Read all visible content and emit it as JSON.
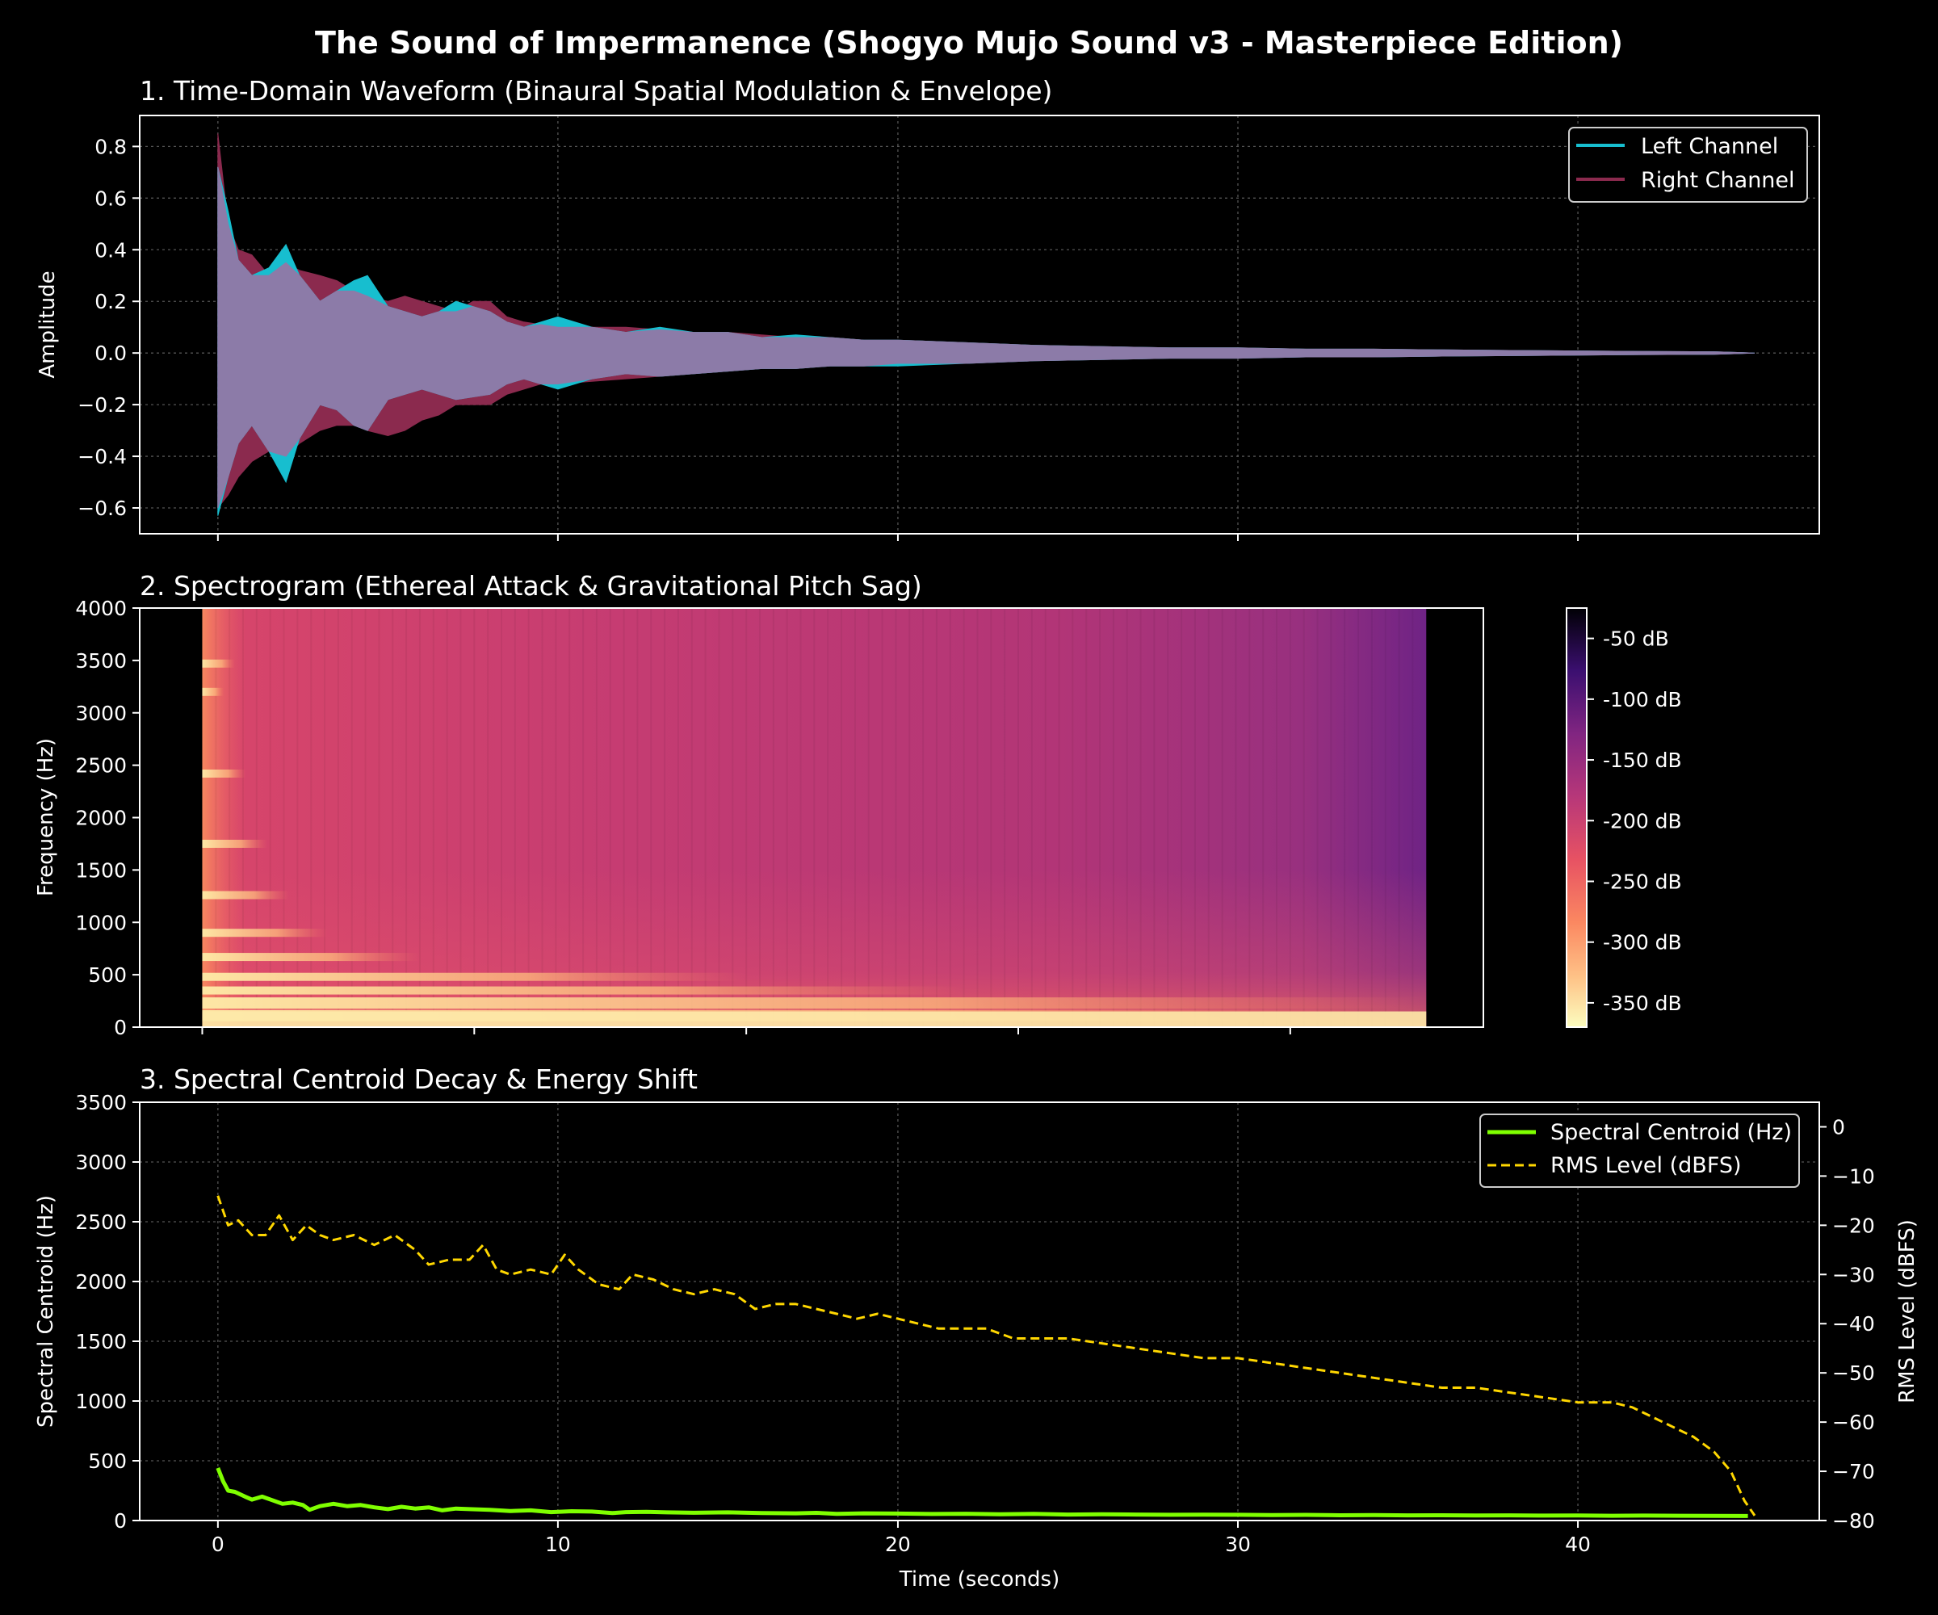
{
  "title": "The Sound of Impermanence (Shogyo Mujo Sound v3 - Masterpiece Edition)",
  "colors": {
    "background": "#000000",
    "title_text": "#e6e6e6",
    "panel_title": "#87ceeb",
    "left_channel": "#17becf",
    "right_channel": "#8b2a4e",
    "overlap": "#8c7ba8",
    "centroid": "#7fff00",
    "rms": "#ffd700",
    "axes": "#ffffff",
    "grid": "#555555"
  },
  "chart_data": [
    {
      "type": "area",
      "title": "1. Time-Domain Waveform (Binaural Spatial Modulation & Envelope)",
      "xlabel": "",
      "ylabel": "Amplitude",
      "xlim": [
        -2.3,
        47.1
      ],
      "ylim": [
        -0.7,
        0.92
      ],
      "xticks": [
        0,
        10,
        20,
        30,
        40
      ],
      "yticks": [
        -0.6,
        -0.4,
        -0.2,
        0.0,
        0.2,
        0.4,
        0.6,
        0.8
      ],
      "ytick_labels": [
        "−0.6",
        "−0.4",
        "−0.2",
        "0.0",
        "0.2",
        "0.4",
        "0.6",
        "0.8"
      ],
      "grid": true,
      "legend": "upper right",
      "series": [
        {
          "name": "Left Channel",
          "x": [
            0,
            0.3,
            0.6,
            1,
            1.5,
            2,
            2.4,
            3,
            3.5,
            4,
            4.4,
            5,
            5.5,
            6,
            6.5,
            7,
            7.5,
            8,
            8.5,
            9,
            9.5,
            10,
            11,
            12,
            13,
            14,
            15,
            16,
            17,
            18,
            19,
            20,
            22,
            24,
            26,
            28,
            30,
            32,
            34,
            36,
            38,
            40,
            42,
            44,
            45.2
          ],
          "upper": [
            0.72,
            0.55,
            0.36,
            0.3,
            0.33,
            0.42,
            0.3,
            0.2,
            0.24,
            0.28,
            0.3,
            0.18,
            0.16,
            0.14,
            0.16,
            0.2,
            0.18,
            0.16,
            0.12,
            0.1,
            0.12,
            0.14,
            0.1,
            0.08,
            0.1,
            0.08,
            0.08,
            0.06,
            0.07,
            0.06,
            0.05,
            0.05,
            0.04,
            0.03,
            0.025,
            0.02,
            0.02,
            0.015,
            0.015,
            0.012,
            0.01,
            0.008,
            0.006,
            0.005,
            0.0
          ],
          "lower": [
            -0.63,
            -0.48,
            -0.35,
            -0.28,
            -0.38,
            -0.5,
            -0.33,
            -0.2,
            -0.22,
            -0.28,
            -0.3,
            -0.18,
            -0.16,
            -0.14,
            -0.16,
            -0.18,
            -0.17,
            -0.16,
            -0.12,
            -0.1,
            -0.12,
            -0.14,
            -0.1,
            -0.08,
            -0.09,
            -0.08,
            -0.07,
            -0.06,
            -0.06,
            -0.05,
            -0.05,
            -0.05,
            -0.04,
            -0.03,
            -0.025,
            -0.02,
            -0.02,
            -0.015,
            -0.015,
            -0.012,
            -0.01,
            -0.008,
            -0.006,
            -0.005,
            0.0
          ]
        },
        {
          "name": "Right Channel",
          "x": [
            0,
            0.3,
            0.6,
            1,
            1.5,
            2,
            2.4,
            3,
            3.5,
            4,
            4.4,
            5,
            5.5,
            6,
            6.5,
            7,
            7.5,
            8,
            8.5,
            9,
            9.5,
            10,
            11,
            12,
            13,
            14,
            15,
            16,
            17,
            18,
            19,
            20,
            22,
            24,
            26,
            28,
            30,
            32,
            34,
            36,
            38,
            40,
            42,
            44,
            45.2
          ],
          "upper": [
            0.85,
            0.5,
            0.4,
            0.38,
            0.3,
            0.35,
            0.32,
            0.3,
            0.28,
            0.24,
            0.22,
            0.2,
            0.22,
            0.2,
            0.18,
            0.16,
            0.2,
            0.2,
            0.14,
            0.12,
            0.11,
            0.1,
            0.1,
            0.1,
            0.09,
            0.08,
            0.08,
            0.07,
            0.06,
            0.06,
            0.05,
            0.05,
            0.04,
            0.03,
            0.025,
            0.02,
            0.02,
            0.015,
            0.015,
            0.012,
            0.01,
            0.008,
            0.006,
            0.005,
            0.0
          ],
          "lower": [
            -0.6,
            -0.55,
            -0.48,
            -0.42,
            -0.38,
            -0.4,
            -0.35,
            -0.3,
            -0.28,
            -0.28,
            -0.3,
            -0.32,
            -0.3,
            -0.26,
            -0.24,
            -0.2,
            -0.2,
            -0.2,
            -0.16,
            -0.14,
            -0.12,
            -0.12,
            -0.11,
            -0.1,
            -0.09,
            -0.08,
            -0.07,
            -0.06,
            -0.06,
            -0.05,
            -0.05,
            -0.04,
            -0.04,
            -0.03,
            -0.025,
            -0.02,
            -0.02,
            -0.015,
            -0.015,
            -0.012,
            -0.01,
            -0.008,
            -0.006,
            -0.005,
            0.0
          ]
        }
      ]
    },
    {
      "type": "heatmap",
      "title": "2. Spectrogram (Ethereal Attack & Gravitational Pitch Sag)",
      "xlabel": "",
      "ylabel": "Frequency (Hz)",
      "xlim": [
        -2.3,
        47.1
      ],
      "ylim": [
        0,
        4000
      ],
      "data_xlim": [
        0,
        45
      ],
      "xticks": [
        0,
        10,
        20,
        30,
        40
      ],
      "yticks": [
        0,
        500,
        1000,
        1500,
        2000,
        2500,
        3000,
        3500,
        4000
      ],
      "colormap": "magma",
      "colorbar": {
        "range_db": [
          -370,
          -25
        ],
        "ticks": [
          -50,
          -100,
          -150,
          -200,
          -250,
          -300,
          -350
        ],
        "tick_labels": [
          "-50 dB",
          "-100 dB",
          "-150 dB",
          "-200 dB",
          "-250 dB",
          "-300 dB",
          "-350 dB"
        ]
      },
      "bright_bands_hz": [
        {
          "freq": 3470,
          "end_time": 1.2,
          "level_db": -110
        },
        {
          "freq": 3200,
          "end_time": 0.8,
          "level_db": -120
        },
        {
          "freq": 2420,
          "end_time": 1.6,
          "level_db": -110
        },
        {
          "freq": 1750,
          "end_time": 2.4,
          "level_db": -100
        },
        {
          "freq": 1260,
          "end_time": 3.2,
          "level_db": -95
        },
        {
          "freq": 900,
          "end_time": 4.6,
          "level_db": -85
        },
        {
          "freq": 670,
          "end_time": 8.0,
          "level_db": -80
        },
        {
          "freq": 480,
          "end_time": 20.0,
          "level_db": -70
        },
        {
          "freq": 350,
          "end_time": 28.0,
          "level_db": -60
        },
        {
          "freq": 230,
          "end_time": 45.0,
          "level_db": -55
        },
        {
          "freq": 110,
          "end_time": 45.0,
          "level_db": -40
        }
      ]
    },
    {
      "type": "line",
      "title": "3. Spectral Centroid Decay & Energy Shift",
      "xlabel": "Time (seconds)",
      "ylabel": "Spectral Centroid (Hz)",
      "ylabel_right": "RMS Level (dBFS)",
      "xlim": [
        -2.3,
        47.1
      ],
      "ylim": [
        0,
        3500
      ],
      "ylim_right": [
        -80,
        5
      ],
      "xticks": [
        0,
        10,
        20,
        30,
        40
      ],
      "yticks": [
        0,
        500,
        1000,
        1500,
        2000,
        2500,
        3000,
        3500
      ],
      "yticks_right": [
        0,
        -10,
        -20,
        -30,
        -40,
        -50,
        -60,
        -70,
        -80
      ],
      "ytick_labels_right": [
        "0",
        "−10",
        "−20",
        "−30",
        "−40",
        "−50",
        "−60",
        "−70",
        "−80"
      ],
      "grid": true,
      "legend": "upper right",
      "series": [
        {
          "name": "Spectral Centroid (Hz)",
          "axis": "left",
          "style": "solid",
          "x": [
            0,
            0.15,
            0.3,
            0.5,
            0.8,
            1.0,
            1.3,
            1.6,
            1.9,
            2.2,
            2.5,
            2.7,
            3.0,
            3.4,
            3.8,
            4.2,
            4.6,
            5.0,
            5.4,
            5.8,
            6.2,
            6.6,
            7.0,
            7.4,
            8.0,
            8.6,
            9.2,
            9.8,
            10.4,
            11.0,
            11.6,
            12.0,
            12.6,
            13.2,
            14.0,
            15.0,
            16.0,
            17.0,
            17.6,
            18.2,
            19.0,
            20.0,
            21.0,
            22.0,
            23.0,
            24.0,
            25.0,
            26.0,
            27.0,
            28.0,
            29.0,
            30.0,
            31.0,
            32.0,
            33.0,
            34.0,
            35.0,
            36.0,
            37.0,
            38.0,
            39.0,
            40.0,
            41.0,
            42.0,
            43.0,
            44.0,
            45.0
          ],
          "values": [
            440,
            330,
            250,
            240,
            200,
            175,
            200,
            170,
            140,
            150,
            130,
            90,
            120,
            140,
            120,
            130,
            110,
            95,
            115,
            100,
            110,
            85,
            100,
            95,
            90,
            80,
            85,
            70,
            78,
            75,
            62,
            70,
            72,
            68,
            65,
            68,
            62,
            60,
            64,
            56,
            60,
            58,
            55,
            57,
            52,
            56,
            50,
            52,
            50,
            48,
            49,
            48,
            45,
            47,
            44,
            45,
            43,
            44,
            42,
            43,
            41,
            42,
            40,
            41,
            40,
            39,
            38
          ]
        },
        {
          "name": "RMS Level (dBFS)",
          "axis": "right",
          "style": "dashed",
          "x": [
            0,
            0.3,
            0.6,
            1.0,
            1.4,
            1.8,
            2.2,
            2.6,
            3.0,
            3.4,
            4.0,
            4.6,
            5.2,
            5.8,
            6.2,
            6.8,
            7.4,
            7.8,
            8.2,
            8.6,
            9.2,
            9.8,
            10.2,
            10.6,
            11.2,
            11.8,
            12.2,
            12.8,
            13.4,
            14.0,
            14.6,
            15.2,
            15.8,
            16.4,
            17.0,
            17.6,
            18.2,
            18.8,
            19.4,
            20.0,
            20.6,
            21.2,
            22.0,
            22.6,
            23.4,
            24.2,
            25.0,
            26.0,
            27.0,
            28.0,
            29.0,
            30.0,
            31.0,
            32.0,
            33.0,
            34.0,
            35.0,
            36.0,
            37.0,
            38.0,
            39.0,
            40.0,
            41.0,
            41.6,
            42.2,
            42.8,
            43.4,
            44.0,
            44.5,
            44.9,
            45.2
          ],
          "values": [
            -14,
            -20,
            -19,
            -22,
            -22,
            -18,
            -23,
            -20,
            -22,
            -23,
            -22,
            -24,
            -22,
            -25,
            -28,
            -27,
            -27,
            -24,
            -29,
            -30,
            -29,
            -30,
            -26,
            -29,
            -32,
            -33,
            -30,
            -31,
            -33,
            -34,
            -33,
            -34,
            -37,
            -36,
            -36,
            -37,
            -38,
            -39,
            -38,
            -39,
            -40,
            -41,
            -41,
            -41,
            -43,
            -43,
            -43,
            -44,
            -45,
            -46,
            -47,
            -47,
            -48,
            -49,
            -50,
            -51,
            -52,
            -53,
            -53,
            -54,
            -55,
            -56,
            -56,
            -57,
            -59,
            -61,
            -63,
            -66,
            -70,
            -76,
            -79
          ]
        }
      ]
    }
  ]
}
